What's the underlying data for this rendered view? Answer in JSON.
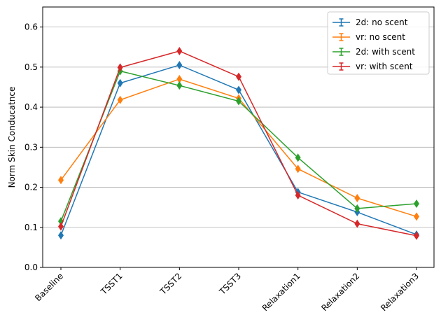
{
  "chart_data": {
    "type": "line",
    "title": "",
    "xlabel": "",
    "ylabel": "Norm Skin Conducatnce",
    "categories": [
      "Baseline",
      "TSST1",
      "TSST2",
      "TSST3",
      "Relaxation1",
      "Relaxation2",
      "Relaxation3"
    ],
    "ylim": [
      0,
      0.65
    ],
    "yticks": [
      "0.0",
      "0.1",
      "0.2",
      "0.3",
      "0.4",
      "0.5",
      "0.6"
    ],
    "grid": "horizontal",
    "legend_position": "top-right",
    "series": [
      {
        "name": "2d: no scent",
        "color": "#1f77b4",
        "values": [
          0.08,
          0.46,
          0.505,
          0.443,
          0.188,
          0.138,
          0.082
        ]
      },
      {
        "name": "vr: no scent",
        "color": "#ff7f0e",
        "values": [
          0.218,
          0.418,
          0.47,
          0.422,
          0.246,
          0.173,
          0.127
        ]
      },
      {
        "name": "2d: with scent",
        "color": "#2ca02c",
        "values": [
          0.115,
          0.49,
          0.454,
          0.415,
          0.274,
          0.147,
          0.159
        ]
      },
      {
        "name": "vr: with scent",
        "color": "#d62728",
        "values": [
          0.102,
          0.499,
          0.54,
          0.476,
          0.18,
          0.109,
          0.079
        ]
      }
    ]
  }
}
